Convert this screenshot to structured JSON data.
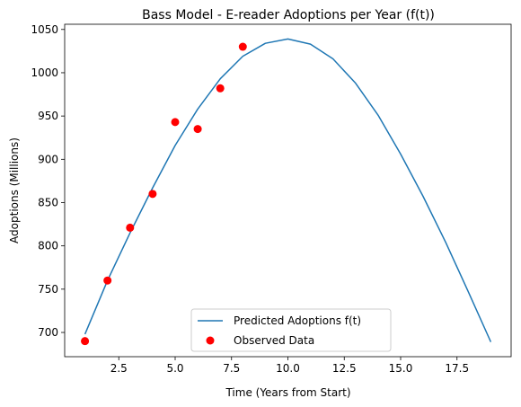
{
  "chart_data": {
    "type": "line",
    "title": "Bass Model - E-reader Adoptions per Year (f(t))",
    "xlabel": "Time (Years from Start)",
    "ylabel": "Adoptions (Millions)",
    "xlim": [
      0.1,
      19.9
    ],
    "ylim": [
      672,
      1056
    ],
    "xticks": [
      2.5,
      5.0,
      7.5,
      10.0,
      12.5,
      15.0,
      17.5
    ],
    "xtick_labels": [
      "2.5",
      "5.0",
      "7.5",
      "10.0",
      "12.5",
      "15.0",
      "17.5"
    ],
    "yticks": [
      700,
      750,
      800,
      850,
      900,
      950,
      1000,
      1050
    ],
    "ytick_labels": [
      "700",
      "750",
      "800",
      "850",
      "900",
      "950",
      "1000",
      "1050"
    ],
    "grid": false,
    "legend_position": "bottom-center",
    "series": [
      {
        "name": "Predicted Adoptions f(t)",
        "kind": "line",
        "color": "#1f77b4",
        "x": [
          1,
          2,
          3,
          4,
          5,
          6,
          7,
          8,
          9,
          10,
          11,
          12,
          13,
          14,
          15,
          16,
          17,
          18,
          19
        ],
        "y": [
          698,
          760,
          815,
          867,
          916,
          958,
          993,
          1019,
          1034,
          1039,
          1033,
          1016,
          988,
          951,
          906,
          857,
          804,
          747,
          689
        ]
      },
      {
        "name": "Observed Data",
        "kind": "scatter",
        "color": "#ff0000",
        "x": [
          1,
          2,
          3,
          4,
          5,
          6,
          7,
          8
        ],
        "y": [
          690,
          760,
          821,
          860,
          943,
          935,
          982,
          1030
        ]
      }
    ]
  }
}
